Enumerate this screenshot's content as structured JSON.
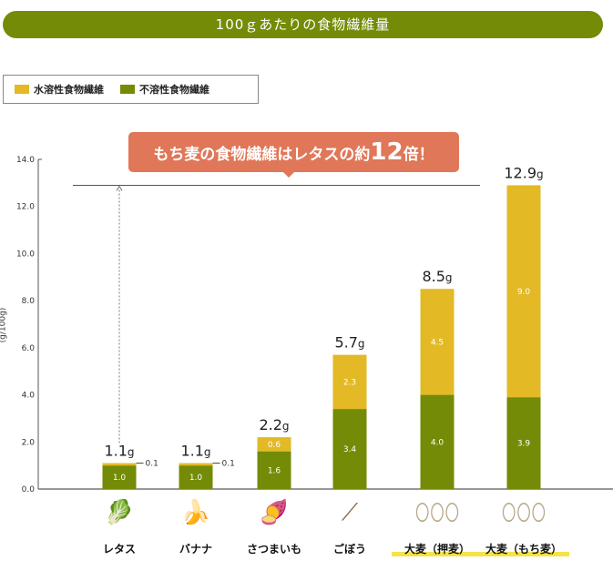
{
  "title": "100ｇあたりの食物繊維量",
  "legend": {
    "soluble": "水溶性食物繊維",
    "insoluble": "不溶性食物繊維"
  },
  "callout": {
    "prefix": "もち麦の食物繊維はレタスの約",
    "number": "12",
    "suffix": "倍！"
  },
  "colors": {
    "soluble": "#e3b926",
    "insoluble": "#738b06",
    "callout": "#e07758",
    "title": "#738b06"
  },
  "chart_data": {
    "type": "bar",
    "stacked": true,
    "ylabel": "(g/100g)",
    "ylim": [
      0,
      14
    ],
    "yticks": [
      "0.0",
      "2.0",
      "4.0",
      "6.0",
      "8.0",
      "10.0",
      "12.0",
      "14.0"
    ],
    "categories": [
      "レタス",
      "バナナ",
      "さつまいも",
      "ごぼう",
      "大麦（押麦）",
      "大麦（もち麦）"
    ],
    "highlighted": [
      "大麦（押麦）",
      "大麦（もち麦）"
    ],
    "icons": [
      "lettuce-icon",
      "banana-icon",
      "sweet-potato-icon",
      "burdock-icon",
      "pressed-barley-icon",
      "mochi-barley-icon"
    ],
    "series": [
      {
        "name": "不溶性食物繊維",
        "values": [
          1.0,
          1.0,
          1.6,
          3.4,
          4.0,
          3.9
        ],
        "labels": [
          "1.0",
          "1.0",
          "1.6",
          "3.4",
          "4.0",
          "3.9"
        ]
      },
      {
        "name": "水溶性食物繊維",
        "values": [
          0.1,
          0.1,
          0.6,
          2.3,
          4.5,
          9.0
        ],
        "labels": [
          "0.1",
          "0.1",
          "0.6",
          "2.3",
          "4.5",
          "9.0"
        ]
      }
    ],
    "totals": [
      "1.1g",
      "1.1g",
      "2.2g",
      "5.7g",
      "8.5g",
      "12.9g"
    ],
    "reference_line": 12.9
  }
}
